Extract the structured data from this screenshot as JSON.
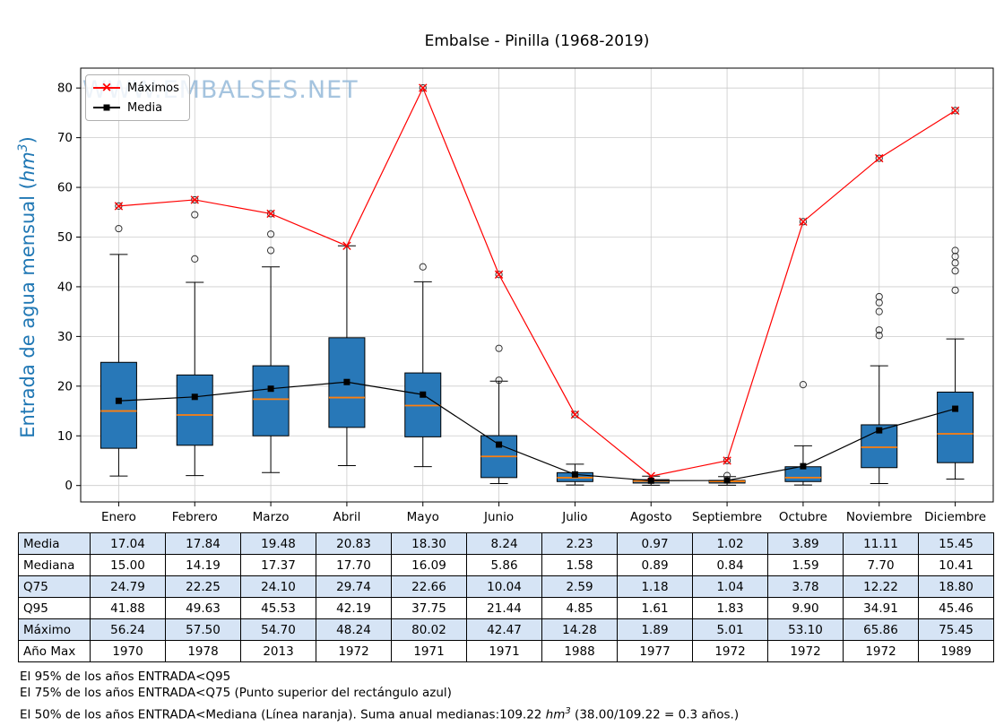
{
  "title": "Embalse - Pinilla (1968-2019)",
  "watermark": "WWW.EMBALSES.NET",
  "ylabel": {
    "pre": "Entrada de agua mensual (",
    "math": "hm",
    "sup": "3",
    "post": ")"
  },
  "legend": {
    "maximos": "Máximos",
    "media": "Media"
  },
  "icons": {
    "max_marker": "×"
  },
  "colors": {
    "box": "#2878b8",
    "median": "#ff7f0e",
    "max_line": "#ff0000",
    "mean_line": "#000000",
    "ylabel": "#1f77b4",
    "watermark": "#8fb6d8",
    "table_shade": "#d6e4f5",
    "grid": "#cccccc"
  },
  "chart_data": {
    "type": "boxplot",
    "title": "Embalse - Pinilla (1968-2019)",
    "ylabel": "Entrada de agua mensual (hm³)",
    "categories": [
      "Enero",
      "Febrero",
      "Marzo",
      "Abril",
      "Mayo",
      "Junio",
      "Julio",
      "Agosto",
      "Septiembre",
      "Octubre",
      "Noviembre",
      "Diciembre"
    ],
    "ylim": [
      -3.3,
      84
    ],
    "yticks": [
      0,
      10,
      20,
      30,
      40,
      50,
      60,
      70,
      80
    ],
    "grid": true,
    "legend_position": "upper left",
    "series": {
      "media": [
        17.04,
        17.84,
        19.48,
        20.83,
        18.3,
        8.24,
        2.23,
        0.97,
        1.02,
        3.89,
        11.11,
        15.45
      ],
      "mediana": [
        15.0,
        14.19,
        17.37,
        17.7,
        16.09,
        5.86,
        1.58,
        0.89,
        0.84,
        1.59,
        7.7,
        10.41
      ],
      "q25": [
        7.5,
        8.1,
        10.0,
        11.7,
        9.8,
        1.6,
        0.8,
        0.5,
        0.5,
        0.8,
        3.6,
        4.6
      ],
      "q75": [
        24.79,
        22.25,
        24.1,
        29.74,
        22.66,
        10.04,
        2.59,
        1.18,
        1.04,
        3.78,
        12.22,
        18.8
      ],
      "q95": [
        41.88,
        49.63,
        45.53,
        42.19,
        37.75,
        21.44,
        4.85,
        1.61,
        1.83,
        9.9,
        34.91,
        45.46
      ],
      "whisker_low": [
        1.9,
        2.0,
        2.6,
        4.0,
        3.8,
        0.4,
        0.1,
        0.05,
        0.05,
        0.1,
        0.4,
        1.3
      ],
      "whisker_high": [
        46.5,
        40.9,
        44.0,
        48.24,
        41.0,
        21.0,
        4.3,
        1.89,
        1.8,
        8.0,
        24.1,
        29.5
      ],
      "maximo": [
        56.24,
        57.5,
        54.7,
        48.24,
        80.02,
        42.47,
        14.28,
        1.89,
        5.01,
        53.1,
        65.86,
        75.45
      ],
      "outliers": [
        [
          51.7,
          56.24
        ],
        [
          45.6,
          54.5,
          57.5
        ],
        [
          47.3,
          50.6,
          54.7
        ],
        [],
        [
          44.0,
          80.02
        ],
        [
          21.2,
          27.6,
          42.47
        ],
        [
          14.28
        ],
        [],
        [
          2.0,
          5.01
        ],
        [
          20.3,
          53.1
        ],
        [
          30.2,
          31.3,
          35.0,
          36.8,
          38.0,
          65.86
        ],
        [
          39.3,
          43.2,
          44.8,
          46.1,
          47.3,
          75.45
        ]
      ]
    }
  },
  "table": {
    "rows": [
      {
        "label": "Media",
        "values": [
          "17.04",
          "17.84",
          "19.48",
          "20.83",
          "18.30",
          "8.24",
          "2.23",
          "0.97",
          "1.02",
          "3.89",
          "11.11",
          "15.45"
        ]
      },
      {
        "label": "Mediana",
        "values": [
          "15.00",
          "14.19",
          "17.37",
          "17.70",
          "16.09",
          "5.86",
          "1.58",
          "0.89",
          "0.84",
          "1.59",
          "7.70",
          "10.41"
        ]
      },
      {
        "label": "Q75",
        "values": [
          "24.79",
          "22.25",
          "24.10",
          "29.74",
          "22.66",
          "10.04",
          "2.59",
          "1.18",
          "1.04",
          "3.78",
          "12.22",
          "18.80"
        ]
      },
      {
        "label": "Q95",
        "values": [
          "41.88",
          "49.63",
          "45.53",
          "42.19",
          "37.75",
          "21.44",
          "4.85",
          "1.61",
          "1.83",
          "9.90",
          "34.91",
          "45.46"
        ]
      },
      {
        "label": "Máximo",
        "values": [
          "56.24",
          "57.50",
          "54.70",
          "48.24",
          "80.02",
          "42.47",
          "14.28",
          "1.89",
          "5.01",
          "53.10",
          "65.86",
          "75.45"
        ]
      },
      {
        "label": "Año Max",
        "values": [
          "1970",
          "1978",
          "2013",
          "1972",
          "1971",
          "1971",
          "1988",
          "1977",
          "1972",
          "1972",
          "1972",
          "1989"
        ]
      }
    ]
  },
  "footnotes": {
    "line1": "El 95% de los años ENTRADA<Q95",
    "line2": "El 75% de los años ENTRADA<Q75 (Punto superior del rectángulo azul)",
    "line3": {
      "pre": "El 50% de los años ENTRADA<Mediana (Línea naranja). Suma anual medianas:109.22 ",
      "math": "hm",
      "sup": "3",
      "post": " (38.00/109.22 = 0.3 años.)"
    }
  }
}
